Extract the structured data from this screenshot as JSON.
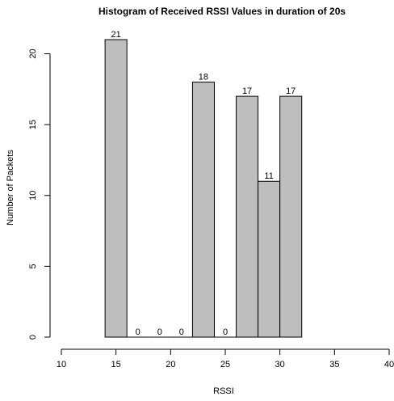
{
  "chart_data": {
    "type": "bar",
    "title": "Histogram of Received RSSI Values  in duration of 20s",
    "xlabel": "RSSI",
    "ylabel": "Number of Packets",
    "bins": [
      {
        "start": 14,
        "end": 16,
        "value": 21
      },
      {
        "start": 16,
        "end": 18,
        "value": 0
      },
      {
        "start": 18,
        "end": 20,
        "value": 0
      },
      {
        "start": 20,
        "end": 22,
        "value": 0
      },
      {
        "start": 22,
        "end": 24,
        "value": 18
      },
      {
        "start": 24,
        "end": 26,
        "value": 0
      },
      {
        "start": 26,
        "end": 28,
        "value": 17
      },
      {
        "start": 28,
        "end": 30,
        "value": 11
      },
      {
        "start": 30,
        "end": 32,
        "value": 17
      }
    ],
    "xlim": [
      10,
      40
    ],
    "ylim": [
      0,
      21
    ],
    "xticks": [
      "10",
      "15",
      "20",
      "25",
      "30",
      "35",
      "40"
    ],
    "yticks": [
      "0",
      "5",
      "10",
      "15",
      "20"
    ],
    "grid": false,
    "bar_color": "#bebebe"
  }
}
